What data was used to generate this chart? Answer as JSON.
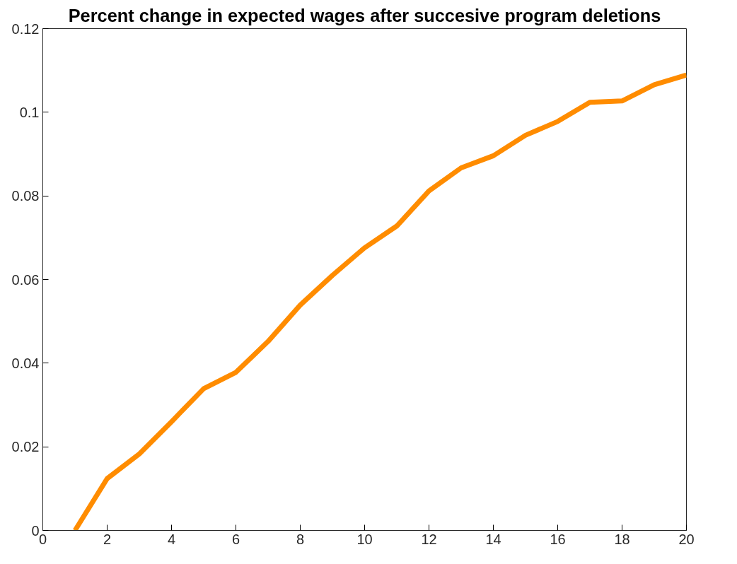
{
  "chart_data": {
    "type": "line",
    "title": "Percent change in expected wages after succesive program deletions",
    "x": [
      1,
      2,
      3,
      4,
      5,
      6,
      7,
      8,
      9,
      10,
      11,
      12,
      13,
      14,
      15,
      16,
      17,
      18,
      19,
      20
    ],
    "series": [
      {
        "color": "#ff8c00",
        "values": [
          0,
          0.0124,
          0.0183,
          0.026,
          0.0339,
          0.0378,
          0.0452,
          0.0539,
          0.061,
          0.0676,
          0.0728,
          0.0812,
          0.0867,
          0.0896,
          0.0945,
          0.0978,
          0.1024,
          0.1027,
          0.1066,
          0.1089
        ]
      }
    ],
    "xlim": [
      0,
      20
    ],
    "ylim": [
      0,
      0.12
    ],
    "xticks": [
      0,
      2,
      4,
      6,
      8,
      10,
      12,
      14,
      16,
      18,
      20
    ],
    "yticks": [
      0,
      0.02,
      0.04,
      0.06,
      0.08,
      0.1,
      0.12
    ],
    "grid": false,
    "marker": "none",
    "line_style": "solid"
  }
}
